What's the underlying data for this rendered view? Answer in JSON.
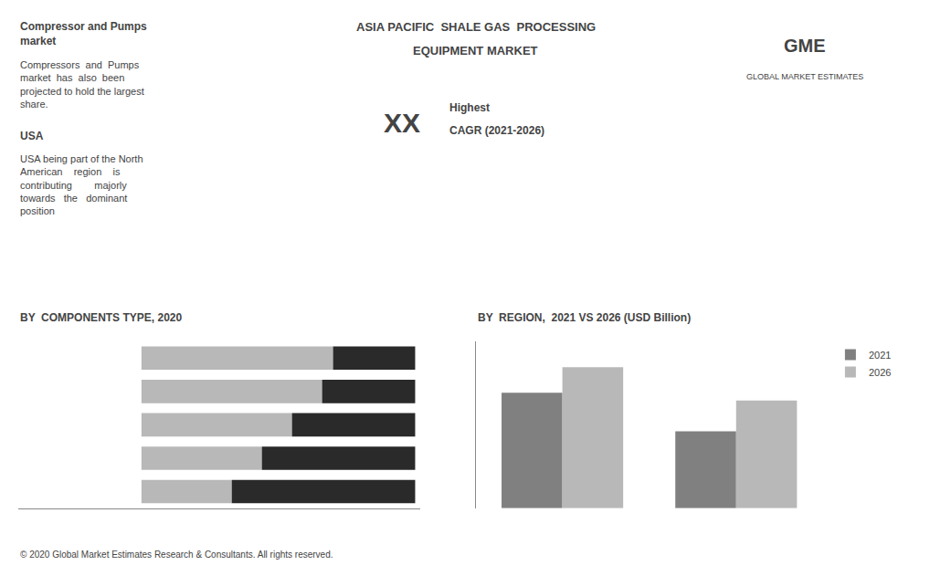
{
  "chart_data": [
    {
      "type": "bar",
      "title": "BY  COMPONENTS TYPE, 2020",
      "orientation": "horizontal",
      "stacked": true,
      "categories": [
        null,
        null,
        null,
        null,
        null
      ],
      "series": [
        {
          "color": "#b8b8b8",
          "values": [
            0.7,
            0.66,
            0.55,
            0.44,
            0.33
          ]
        },
        {
          "color": "#2a2a2a",
          "values": [
            0.3,
            0.34,
            0.45,
            0.56,
            0.67
          ]
        }
      ],
      "xlim": [
        -0.45,
        1.02
      ],
      "grid": false,
      "tick_labels": false,
      "annotations": [
        "ASIA PACIFIC  SHALE GAS  PROCESSING",
        "EQUIPMENT MARKET",
        "Compressor and Pumps\nmarket",
        "Compressors  and  Pumps\nmarket  has  also  been\nprojected to hold the largest\nshare.",
        "USA",
        "USA being part of the North\nAmerican    region    is\ncontributing        majorly\ntowards   the   dominant\nposition",
        "XX",
        "Highest",
        "CAGR (2021-2026)",
        "GME",
        "GLOBAL MARKET ESTIMATES",
        "© 2020 Global Market Estimates Research & Consultants. All rights reserved."
      ]
    },
    {
      "type": "bar",
      "title": "BY  REGION,  2021 VS 2026 (USD Billion)",
      "categories": [
        null,
        null
      ],
      "series": [
        {
          "name": "2021",
          "color": "#808080",
          "values": [
            4.5,
            3.0
          ]
        },
        {
          "name": "2026",
          "color": "#b8b8b8",
          "values": [
            5.5,
            4.2
          ]
        }
      ],
      "ylim": [
        0,
        6.5
      ],
      "grid": false,
      "tick_labels": false,
      "legend": "upper right"
    }
  ]
}
